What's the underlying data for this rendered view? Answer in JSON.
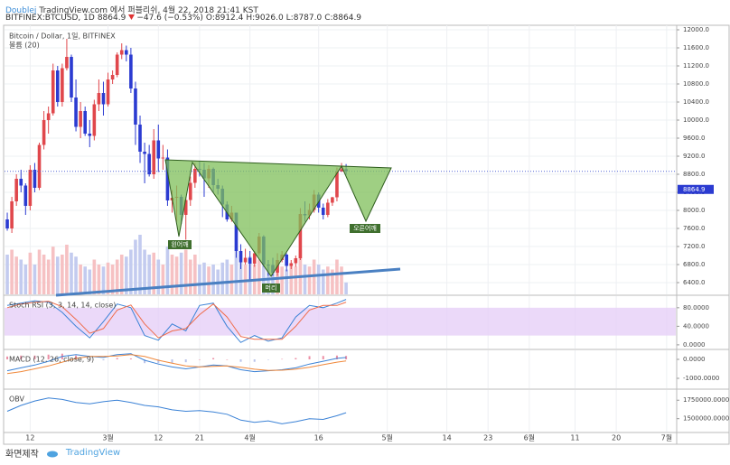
{
  "header": {
    "publisher": "Doublej",
    "source": "TradingView.com 에서 퍼블리쉬, 4월 22, 2018 21:41 KST",
    "symbol": "BITFINEX:BTCUSD, 1D",
    "last": "8864.9",
    "change": "−47.6 (−0.53%)",
    "ohlc": [
      "O:8912.4",
      "H:9026.0",
      "L:8787.0",
      "C:8864.9"
    ]
  },
  "chart_data": [
    {
      "type": "candlestick",
      "title": "Bitcoin / Dollar, 1일, BITFINEX",
      "up_color": "#e0474c",
      "down_color": "#2b3bd1",
      "x": [
        0,
        1,
        2,
        3,
        4,
        5,
        6,
        7,
        8,
        9,
        10,
        11,
        12,
        13,
        14,
        15,
        16,
        17,
        18,
        19,
        20,
        21,
        22,
        23,
        24,
        25,
        26,
        27,
        28,
        29,
        30,
        31,
        32,
        33,
        34,
        35,
        36,
        37,
        38,
        39,
        40,
        41,
        42,
        43,
        44,
        45,
        46,
        47,
        48,
        49,
        50,
        51,
        52,
        53,
        54,
        55,
        56,
        57,
        58,
        59,
        60,
        61,
        62,
        63,
        64,
        65,
        66,
        67,
        68,
        69,
        70,
        71,
        72,
        73,
        74
      ],
      "open": [
        7800,
        7600,
        8200,
        8700,
        8550,
        8100,
        8900,
        8500,
        9450,
        10000,
        10150,
        11100,
        10400,
        11150,
        11400,
        10500,
        9850,
        10200,
        9700,
        9650,
        10350,
        10600,
        10350,
        10900,
        11000,
        11450,
        11550,
        11450,
        10700,
        9900,
        9300,
        9250,
        8800,
        9550,
        9150,
        9170,
        8220,
        8280,
        8300,
        7900,
        8230,
        8610,
        8920,
        8900,
        8710,
        8920,
        8560,
        8480,
        8130,
        7800,
        7950,
        7100,
        6850,
        6950,
        6820,
        7050,
        7420,
        6800,
        6790,
        6620,
        6900,
        7020,
        6770,
        6830,
        6940,
        7920,
        7890,
        8010,
        8350,
        8060,
        7900,
        8170,
        8290,
        8860,
        8912.4
      ],
      "high": [
        7950,
        8300,
        8800,
        8900,
        8600,
        9000,
        9050,
        9500,
        10200,
        10300,
        11250,
        11200,
        11250,
        11800,
        11450,
        10900,
        10400,
        10300,
        10000,
        10450,
        10900,
        10850,
        11050,
        11100,
        11500,
        11700,
        11650,
        11600,
        10850,
        10100,
        9500,
        9450,
        9800,
        9900,
        9450,
        9350,
        8450,
        8550,
        8350,
        8300,
        8750,
        9050,
        9100,
        9050,
        9000,
        8950,
        8700,
        8550,
        8200,
        8100,
        7950,
        7250,
        7150,
        7100,
        7100,
        7500,
        7450,
        6900,
        6950,
        7050,
        7100,
        7050,
        6900,
        7000,
        8050,
        8200,
        8150,
        8450,
        8400,
        8150,
        8250,
        8300,
        8950,
        9050,
        9026
      ],
      "low": [
        7550,
        7500,
        8100,
        8400,
        7900,
        8000,
        8400,
        8450,
        9350,
        9700,
        10100,
        10300,
        10300,
        11100,
        10400,
        9750,
        9600,
        9650,
        9400,
        9550,
        10200,
        10100,
        10300,
        10800,
        10950,
        11350,
        11300,
        10600,
        9450,
        9050,
        8600,
        8750,
        8700,
        8850,
        8900,
        8100,
        7950,
        7750,
        7700,
        7350,
        8100,
        8500,
        8750,
        8300,
        8500,
        8400,
        8350,
        7850,
        7750,
        7750,
        6950,
        6700,
        6800,
        6450,
        6750,
        7000,
        6750,
        6550,
        6550,
        6550,
        6850,
        6650,
        6700,
        6750,
        6900,
        7750,
        7800,
        7950,
        7950,
        7800,
        7850,
        8100,
        8200,
        8850,
        8787
      ],
      "close": [
        7600,
        8200,
        8700,
        8550,
        8100,
        8900,
        8500,
        9450,
        10000,
        10150,
        11100,
        10400,
        11150,
        11400,
        10500,
        9850,
        10200,
        9700,
        9650,
        10350,
        10600,
        10350,
        10900,
        11000,
        11450,
        11550,
        11450,
        10700,
        9900,
        9300,
        9250,
        8800,
        9550,
        9150,
        9170,
        8220,
        8280,
        8300,
        7900,
        8230,
        8610,
        8920,
        8900,
        8710,
        8920,
        8560,
        8480,
        8130,
        7800,
        7950,
        7100,
        6850,
        6950,
        6820,
        7050,
        7420,
        6800,
        6790,
        6620,
        6900,
        7020,
        6770,
        6830,
        6940,
        7920,
        7890,
        8010,
        8350,
        8060,
        7900,
        8170,
        8290,
        8860,
        8912.4,
        8864.9
      ],
      "volume": {
        "name": "볼륨 (20)",
        "ylim": [
          0,
          100
        ],
        "values": [
          40,
          45,
          38,
          35,
          30,
          42,
          30,
          45,
          40,
          35,
          48,
          38,
          40,
          50,
          42,
          38,
          30,
          28,
          25,
          35,
          30,
          28,
          32,
          30,
          35,
          40,
          38,
          45,
          55,
          60,
          45,
          40,
          42,
          35,
          30,
          48,
          40,
          38,
          42,
          45,
          35,
          40,
          30,
          32,
          28,
          30,
          25,
          32,
          35,
          30,
          45,
          40,
          30,
          38,
          30,
          35,
          38,
          30,
          28,
          32,
          28,
          25,
          30,
          28,
          45,
          30,
          28,
          35,
          30,
          25,
          28,
          25,
          35,
          28,
          12
        ]
      },
      "annotations": [
        "왼어깨",
        "머리",
        "오른어깨"
      ],
      "ylim": [
        6140,
        12100
      ],
      "yticks": [
        {
          "value": 6400,
          "label": "6400.0"
        },
        {
          "value": 6800,
          "label": "6800.0"
        },
        {
          "value": 7200,
          "label": "7200.0"
        },
        {
          "value": 7600,
          "label": "7600.0"
        },
        {
          "value": 8000,
          "label": "8000.0"
        },
        {
          "value": 8400,
          "label": "8400.0"
        },
        {
          "value": 8800,
          "label": "8800.0"
        },
        {
          "value": 9200,
          "label": "9200.0"
        },
        {
          "value": 9600,
          "label": "9600.0"
        },
        {
          "value": 10000,
          "label": "10000.0"
        },
        {
          "value": 10400,
          "label": "10400.0"
        },
        {
          "value": 10800,
          "label": "10800.0"
        },
        {
          "value": 11200,
          "label": "11200.0"
        },
        {
          "value": 11600,
          "label": "11600.0"
        },
        {
          "value": 12000,
          "label": "12000.0"
        }
      ],
      "xlim": [
        -0.6,
        146
      ],
      "xticks": [
        {
          "value": 5,
          "label": "12"
        },
        {
          "value": 22,
          "label": "3월"
        },
        {
          "value": 33,
          "label": "12"
        },
        {
          "value": 42,
          "label": "21"
        },
        {
          "value": 53,
          "label": "4월"
        },
        {
          "value": 68,
          "label": "16"
        },
        {
          "value": 83,
          "label": "5월"
        },
        {
          "value": 96,
          "label": "14"
        },
        {
          "value": 105,
          "label": "23"
        },
        {
          "value": 114,
          "label": "6월"
        },
        {
          "value": 124,
          "label": "11"
        },
        {
          "value": 133,
          "label": "20"
        },
        {
          "value": 144,
          "label": "7월"
        }
      ],
      "grid": true
    },
    {
      "type": "line",
      "title": "Stoch RSI (3, 3, 14, 14, close)",
      "band": [
        20,
        80
      ],
      "band_color": "#e6cff7",
      "x": [
        0,
        3,
        6,
        9,
        12,
        15,
        18,
        21,
        24,
        27,
        30,
        33,
        36,
        39,
        42,
        45,
        48,
        51,
        54,
        57,
        60,
        63,
        66,
        69,
        72,
        74
      ],
      "series": [
        {
          "color": "#3b82d6",
          "values": [
            85,
            90,
            95,
            92,
            70,
            40,
            15,
            50,
            88,
            80,
            20,
            10,
            45,
            30,
            85,
            90,
            40,
            5,
            20,
            8,
            15,
            60,
            85,
            80,
            90,
            98
          ]
        },
        {
          "color": "#ef6c4a",
          "values": [
            80,
            88,
            92,
            94,
            82,
            55,
            25,
            35,
            75,
            86,
            45,
            15,
            30,
            35,
            65,
            88,
            60,
            18,
            12,
            12,
            12,
            40,
            75,
            85,
            85,
            92
          ]
        }
      ],
      "ylim": [
        -8,
        105
      ],
      "yticks": [
        {
          "value": 0,
          "label": "0.0000"
        },
        {
          "value": 40,
          "label": "40.0000"
        },
        {
          "value": 80,
          "label": "80.0000"
        }
      ]
    },
    {
      "type": "line",
      "title": "MACD (12, 26, close, 9)",
      "x": [
        0,
        3,
        6,
        9,
        12,
        15,
        18,
        21,
        24,
        27,
        30,
        33,
        36,
        39,
        42,
        45,
        48,
        51,
        54,
        57,
        60,
        63,
        66,
        69,
        72,
        74
      ],
      "histogram": {
        "up_color": "#ec8fa5",
        "down_color": "#b9c3ea",
        "values": [
          150,
          200,
          200,
          250,
          300,
          200,
          0,
          -50,
          70,
          50,
          -200,
          -200,
          -200,
          -150,
          0,
          70,
          0,
          -130,
          -130,
          -20,
          20,
          70,
          170,
          180,
          200,
          180
        ]
      },
      "series": [
        {
          "color": "#3b82d6",
          "values": [
            -600,
            -450,
            -300,
            -100,
            150,
            250,
            150,
            100,
            250,
            300,
            -50,
            -250,
            -400,
            -500,
            -400,
            -300,
            -350,
            -550,
            -650,
            -600,
            -550,
            -450,
            -250,
            -100,
            50,
            100
          ]
        },
        {
          "color": "#f0883a",
          "values": [
            -750,
            -650,
            -500,
            -350,
            -150,
            50,
            150,
            150,
            180,
            250,
            150,
            -50,
            -200,
            -350,
            -400,
            -370,
            -350,
            -420,
            -520,
            -580,
            -570,
            -520,
            -420,
            -280,
            -150,
            -80
          ]
        }
      ],
      "ylim": [
        -1524,
        476
      ],
      "yticks": [
        {
          "value": -1000,
          "label": "-1000.0000"
        },
        {
          "value": 0,
          "label": "0.0000"
        }
      ]
    },
    {
      "type": "line",
      "title": "OBV",
      "x": [
        0,
        3,
        6,
        9,
        12,
        15,
        18,
        21,
        24,
        27,
        30,
        33,
        36,
        39,
        42,
        45,
        48,
        51,
        54,
        57,
        60,
        63,
        66,
        69,
        72,
        74
      ],
      "series": [
        {
          "color": "#3b82d6",
          "values": [
            1600000,
            1680000,
            1740000,
            1780000,
            1760000,
            1720000,
            1700000,
            1730000,
            1750000,
            1720000,
            1680000,
            1660000,
            1620000,
            1600000,
            1610000,
            1590000,
            1560000,
            1480000,
            1450000,
            1470000,
            1430000,
            1460000,
            1500000,
            1490000,
            1540000,
            1580000
          ]
        }
      ],
      "ylim": [
        1325000,
        1887500
      ],
      "yticks": [
        {
          "value": 1500000,
          "label": "1500000.0000"
        },
        {
          "value": 1750000,
          "label": "1750000.0000"
        }
      ]
    }
  ],
  "footer": {
    "caption": "화면제작",
    "brand": "TradingView"
  }
}
